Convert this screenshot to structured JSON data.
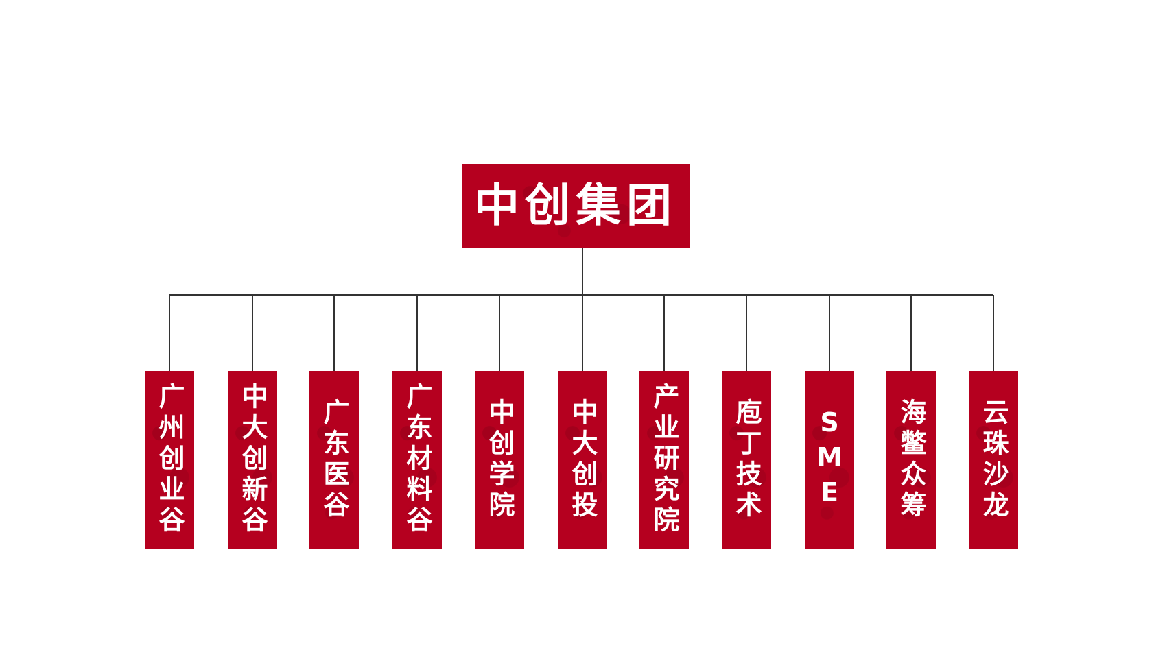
{
  "org_chart": {
    "root": {
      "label": "中创集团"
    },
    "children": [
      {
        "label": "广州创业谷"
      },
      {
        "label": "中大创新谷"
      },
      {
        "label": "广东医谷"
      },
      {
        "label": "广东材料谷"
      },
      {
        "label": "中创学院"
      },
      {
        "label": "中大创投"
      },
      {
        "label": "产业研究院"
      },
      {
        "label": "庖丁技术"
      },
      {
        "label": "SME"
      },
      {
        "label": "海鳖众筹"
      },
      {
        "label": "云珠沙龙"
      }
    ]
  },
  "colors": {
    "box_fill": "#b5001f",
    "box_text": "#ffffff",
    "connector": "#333333",
    "background": "#ffffff"
  }
}
